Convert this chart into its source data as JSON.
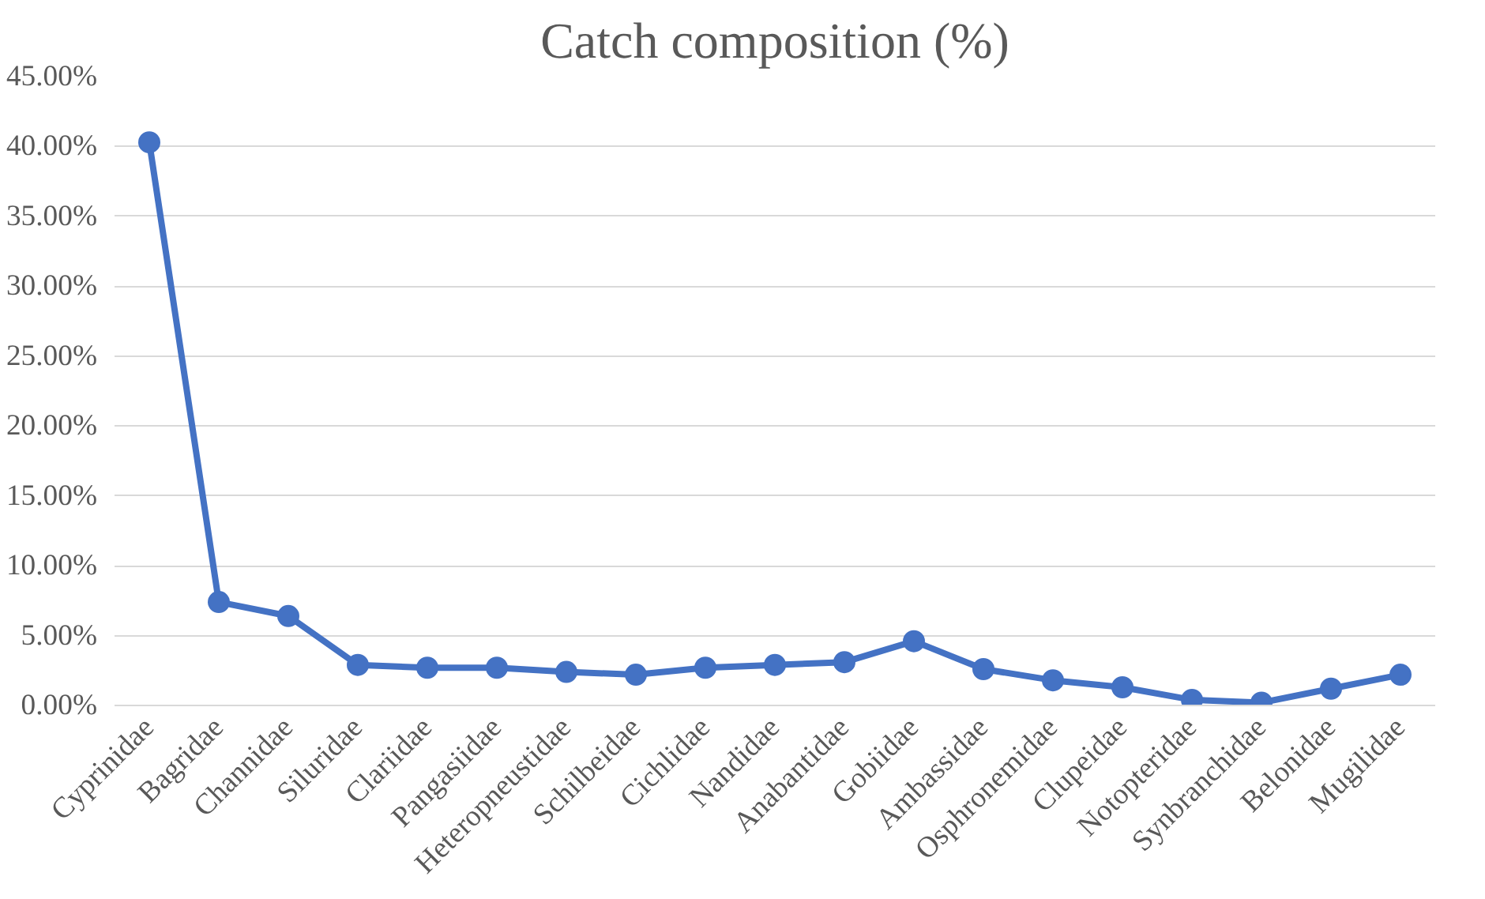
{
  "chart_data": {
    "type": "line",
    "title": "Catch composition (%)",
    "categories": [
      "Cyprinidae",
      "Bagridae",
      "Channidae",
      "Siluridae",
      "Clariidae",
      "Pangasiidae",
      "Heteropneustidae",
      "Schilbeidae",
      "Cichlidae",
      "Nandidae",
      "Anabantidae",
      "Gobiidae",
      "Ambassidae",
      "Osphronemidae",
      "Clupeidae",
      "Notopteridae",
      "Synbranchidae",
      "Belonidae",
      "Mugilidae"
    ],
    "series": [
      {
        "color": "#4472c4",
        "values": [
          40.3,
          7.4,
          6.4,
          2.9,
          2.7,
          2.7,
          2.4,
          2.2,
          2.7,
          2.9,
          3.1,
          4.6,
          2.6,
          1.8,
          1.3,
          0.4,
          0.2,
          1.2,
          2.2
        ]
      }
    ],
    "ylim": [
      0,
      45
    ],
    "yticks": [
      {
        "value": 0,
        "label": "0.00%"
      },
      {
        "value": 5,
        "label": "5.00%"
      },
      {
        "value": 10,
        "label": "10.00%"
      },
      {
        "value": 15,
        "label": "15.00%"
      },
      {
        "value": 20,
        "label": "20.00%"
      },
      {
        "value": 25,
        "label": "25.00%"
      },
      {
        "value": 30,
        "label": "30.00%"
      },
      {
        "value": 35,
        "label": "35.00%"
      },
      {
        "value": 40,
        "label": "40.00%"
      },
      {
        "value": 45,
        "label": "45.00%"
      }
    ],
    "grid": "y",
    "marker": "circle",
    "line_style": "solid"
  }
}
